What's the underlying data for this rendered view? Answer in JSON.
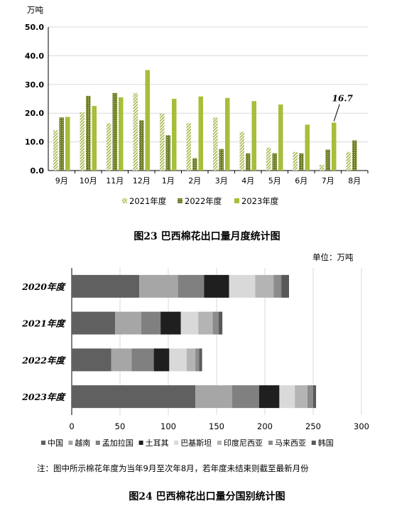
{
  "charts": [
    {
      "type": "bar",
      "unit": "万吨",
      "caption": "图23 巴西棉花出口量月度统计图",
      "categories": [
        "9月",
        "10月",
        "11月",
        "12月",
        "1月",
        "2月",
        "3月",
        "4月",
        "5月",
        "6月",
        "7月",
        "8月"
      ],
      "series": [
        {
          "name": "2021年度",
          "values": [
            14.0,
            20.3,
            16.5,
            27.0,
            19.8,
            16.5,
            18.5,
            13.5,
            8.0,
            6.5,
            2.0,
            6.5
          ],
          "color": "#a9b850",
          "pattern": "stripe"
        },
        {
          "name": "2022年度",
          "values": [
            18.5,
            26.0,
            27.0,
            17.5,
            12.3,
            4.3,
            7.5,
            6.0,
            6.0,
            6.0,
            7.3,
            10.5
          ],
          "color": "#6e7f2a",
          "pattern": "dots"
        },
        {
          "name": "2023年度",
          "values": [
            18.7,
            22.5,
            25.5,
            35.0,
            25.0,
            25.8,
            25.3,
            24.2,
            23.0,
            16.0,
            16.7,
            null
          ],
          "color": "#a6be3a",
          "pattern": "solid"
        }
      ],
      "ylim": [
        0,
        50
      ],
      "yticks": [
        "0.0",
        "10.0",
        "20.0",
        "30.0",
        "40.0",
        "50.0"
      ],
      "annotation": {
        "text": "16.7",
        "category": "7月",
        "series": "2023年度"
      },
      "grid": true,
      "legend": "bottom"
    },
    {
      "type": "stacked-bar-horizontal",
      "unit": "单位：万吨",
      "caption": "图24 巴西棉花出口量分国别统计图",
      "categories": [
        "2020年度",
        "2021年度",
        "2022年度",
        "2023年度"
      ],
      "series": [
        {
          "name": "中国",
          "values": [
            70,
            45,
            41,
            128
          ],
          "color": "#606060"
        },
        {
          "name": "越南",
          "values": [
            40,
            27,
            21,
            38
          ],
          "color": "#a6a6a6"
        },
        {
          "name": "孟加拉国",
          "values": [
            27,
            20,
            23,
            28
          ],
          "color": "#808080"
        },
        {
          "name": "土耳其",
          "values": [
            26,
            21,
            16,
            21
          ],
          "color": "#1f1f1f"
        },
        {
          "name": "巴基斯坦",
          "values": [
            27,
            18,
            18,
            16
          ],
          "color": "#d9d9d9"
        },
        {
          "name": "印度尼西亚",
          "values": [
            19,
            15,
            9,
            13
          ],
          "color": "#b4b4b4"
        },
        {
          "name": "马来西亚",
          "values": [
            8,
            6,
            4,
            6
          ],
          "color": "#8c8c8c"
        },
        {
          "name": "韩国",
          "values": [
            8,
            4,
            3,
            3
          ],
          "color": "#595959"
        }
      ],
      "xlim": [
        0,
        300
      ],
      "xticks": [
        "0",
        "50",
        "100",
        "150",
        "200",
        "250",
        "300"
      ],
      "grid": true,
      "legend": "bottom"
    }
  ],
  "note": "注：图中所示棉花年度为当年9月至次年8月，若年度未结束则截至最新月份"
}
